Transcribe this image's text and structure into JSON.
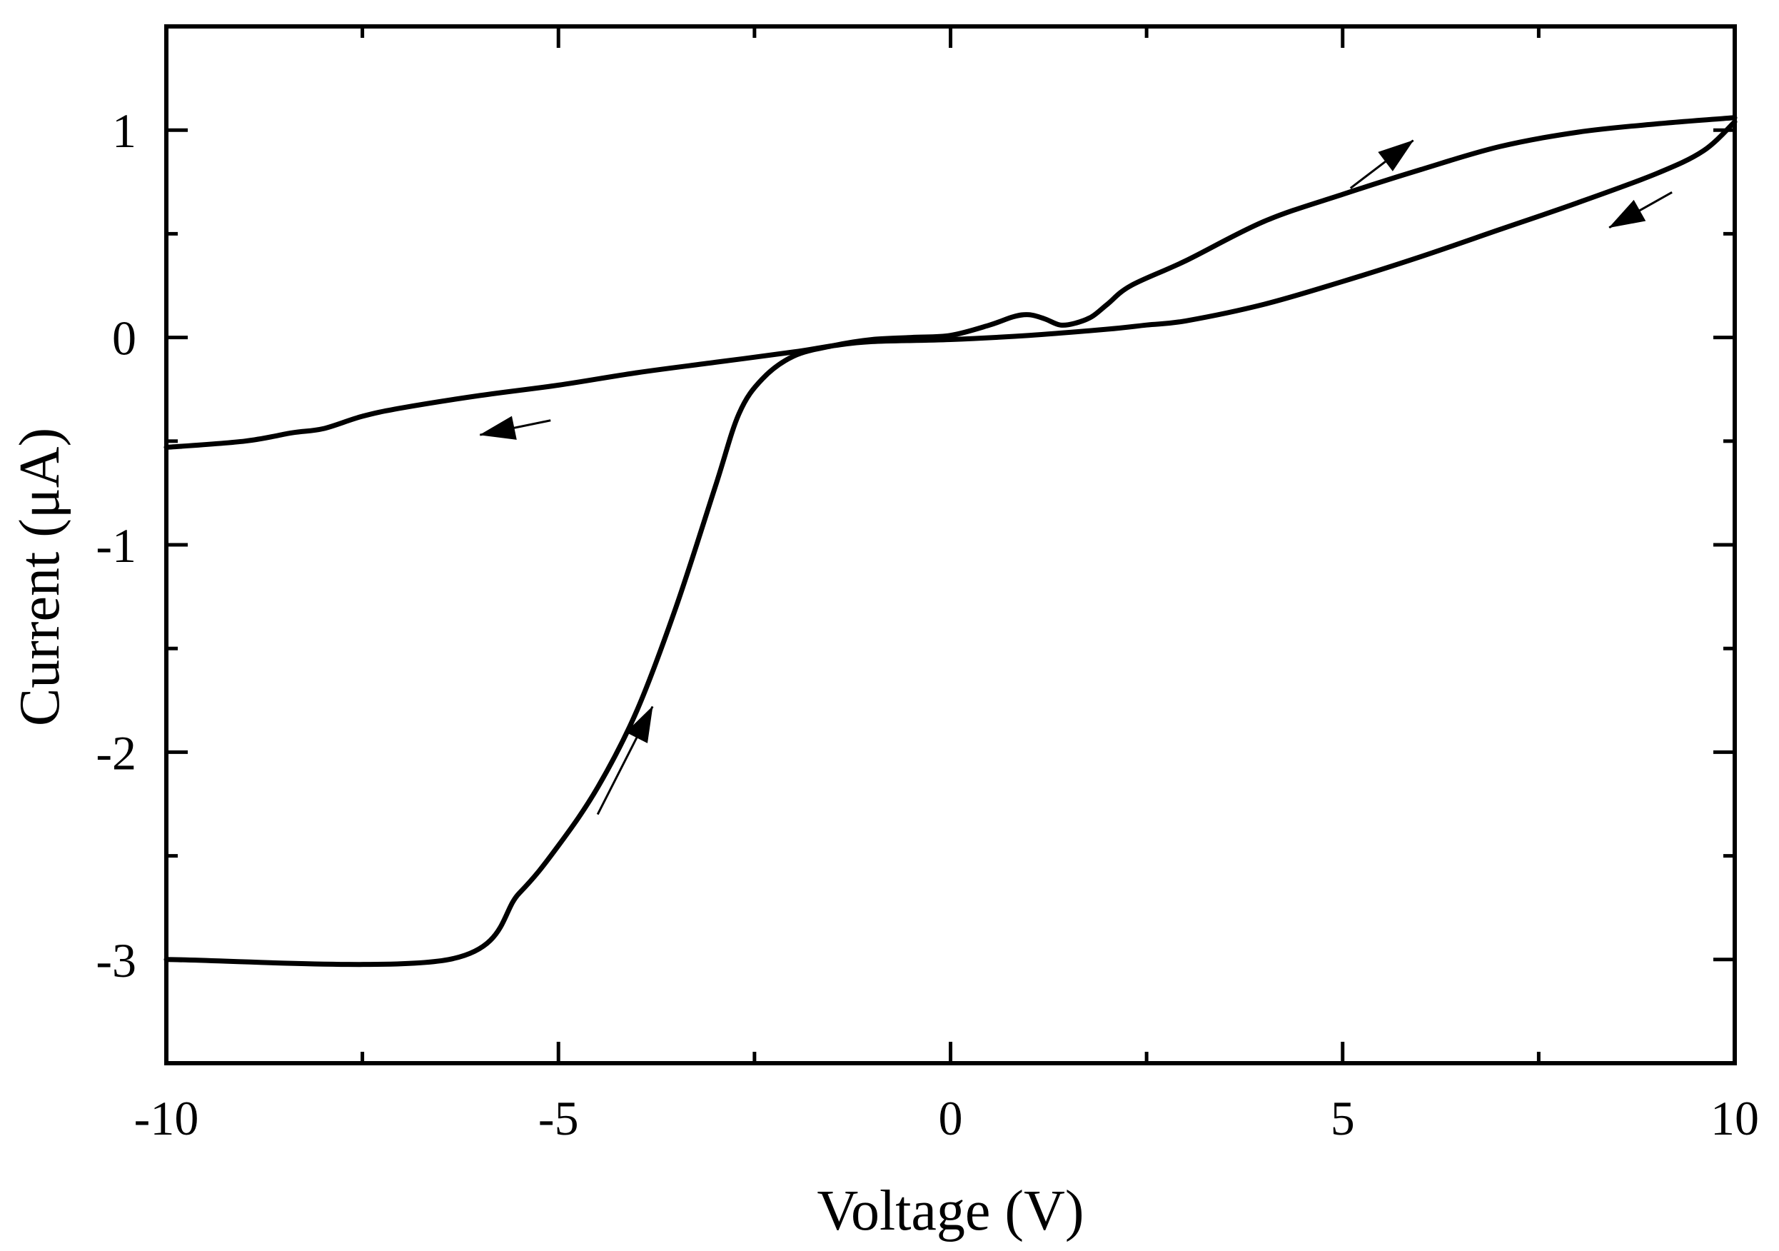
{
  "chart_data": {
    "type": "line",
    "title": "",
    "xlabel": "Voltage (V)",
    "ylabel": "Current (μA)",
    "xlim": [
      -10,
      10
    ],
    "ylim": [
      -3.5,
      1.5
    ],
    "x_ticks": [
      -10,
      -5,
      0,
      5,
      10
    ],
    "x_tick_labels": [
      "-10",
      "-5",
      "0",
      "5",
      "10"
    ],
    "x_minor_step": 2.5,
    "y_ticks": [
      -3,
      -2,
      -1,
      0,
      1
    ],
    "y_tick_labels": [
      "-3",
      "-2",
      "-1",
      "0",
      "1"
    ],
    "y_minor_step": 0.5,
    "grid": false,
    "legend": "none",
    "line_color": "#000000",
    "series": [
      {
        "x": [
          -10,
          -9,
          -8.4,
          -8,
          -7.5,
          -7,
          -6,
          -5,
          -4,
          -3,
          -2,
          -1.5,
          -1,
          0,
          1,
          2,
          2.5,
          3,
          4,
          5,
          6,
          7,
          8,
          9,
          9.6,
          10
        ],
        "y": [
          -0.53,
          -0.5,
          -0.46,
          -0.44,
          -0.38,
          -0.34,
          -0.28,
          -0.23,
          -0.17,
          -0.12,
          -0.07,
          -0.04,
          -0.02,
          -0.01,
          0.01,
          0.04,
          0.06,
          0.08,
          0.16,
          0.27,
          0.39,
          0.52,
          0.65,
          0.79,
          0.9,
          1.04
        ]
      },
      {
        "x": [
          -10,
          -6.4,
          -5.5,
          -5,
          -4.5,
          -4,
          -3.5,
          -3,
          -2.7,
          -2.4,
          -2,
          -1.5,
          -1,
          -0.5,
          0,
          0.5,
          0.8,
          1,
          1.2,
          1.4,
          1.6,
          1.8,
          2,
          2.3,
          3,
          4,
          5,
          6,
          7,
          8,
          9,
          10
        ],
        "y": [
          -3.0,
          -3.0,
          -2.68,
          -2.45,
          -2.17,
          -1.8,
          -1.3,
          -0.72,
          -0.37,
          -0.2,
          -0.09,
          -0.04,
          -0.01,
          0.0,
          0.01,
          0.06,
          0.1,
          0.11,
          0.09,
          0.06,
          0.07,
          0.1,
          0.16,
          0.25,
          0.37,
          0.56,
          0.69,
          0.81,
          0.92,
          0.99,
          1.03,
          1.06
        ]
      }
    ],
    "annotations": [
      {
        "type": "arrow",
        "from": [
          5.1,
          0.72
        ],
        "to": [
          5.9,
          0.95
        ]
      },
      {
        "type": "arrow",
        "from": [
          9.2,
          0.7
        ],
        "to": [
          8.4,
          0.53
        ]
      },
      {
        "type": "arrow",
        "from": [
          -5.1,
          -0.4
        ],
        "to": [
          -6.0,
          -0.47
        ]
      },
      {
        "type": "arrow",
        "from": [
          -4.5,
          -2.3
        ],
        "to": [
          -3.8,
          -1.78
        ]
      }
    ]
  }
}
